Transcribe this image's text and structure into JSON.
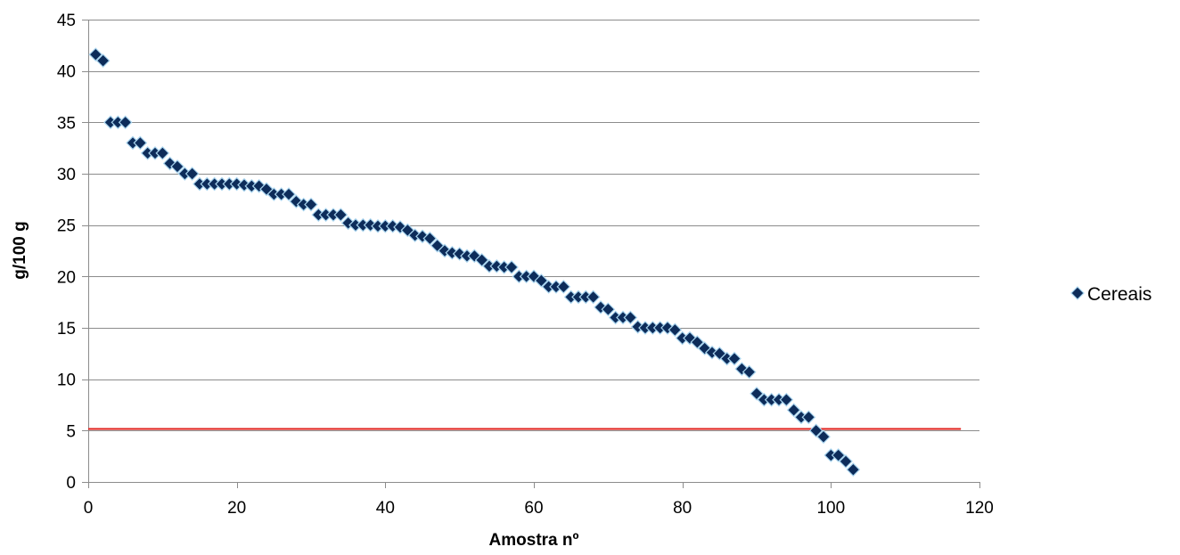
{
  "chart_data": {
    "type": "scatter",
    "xlabel": "Amostra nº",
    "ylabel": "g/100 g",
    "xlim": [
      0,
      120
    ],
    "ylim": [
      0,
      45
    ],
    "xticks": [
      0,
      20,
      40,
      60,
      80,
      100,
      120
    ],
    "yticks": [
      0,
      5,
      10,
      15,
      20,
      25,
      30,
      35,
      40,
      45
    ],
    "grid": "horizontal",
    "legend": "right",
    "reference_line": {
      "y": 5.2,
      "x_from": 0,
      "x_to": 117.5,
      "color": "#e0201b"
    },
    "colors": {
      "marker": "#0d2c5a",
      "marker_edge": "#a9d4ee",
      "grid": "#8c8c8c",
      "axis": "#8c8c8c"
    },
    "series": [
      {
        "name": "Cereais",
        "x": [
          1,
          2,
          3,
          4,
          5,
          6,
          7,
          8,
          9,
          10,
          11,
          12,
          13,
          14,
          15,
          16,
          17,
          18,
          19,
          20,
          21,
          22,
          23,
          24,
          25,
          26,
          27,
          28,
          29,
          30,
          31,
          32,
          33,
          34,
          35,
          36,
          37,
          38,
          39,
          40,
          41,
          42,
          43,
          44,
          45,
          46,
          47,
          48,
          49,
          50,
          51,
          52,
          53,
          54,
          55,
          56,
          57,
          58,
          59,
          60,
          61,
          62,
          63,
          64,
          65,
          66,
          67,
          68,
          69,
          70,
          71,
          72,
          73,
          74,
          75,
          76,
          77,
          78,
          79,
          80,
          81,
          82,
          83,
          84,
          85,
          86,
          87,
          88,
          89,
          90,
          91,
          92,
          93,
          94,
          95,
          96,
          97,
          98,
          99,
          100,
          101,
          102,
          103
        ],
        "y": [
          41.6,
          41.0,
          35.0,
          35.0,
          35.0,
          33.0,
          33.0,
          32.0,
          32.0,
          32.0,
          31.0,
          30.7,
          30.0,
          30.0,
          29.0,
          29.0,
          29.0,
          29.0,
          29.0,
          29.0,
          28.9,
          28.8,
          28.8,
          28.5,
          28.0,
          28.0,
          28.0,
          27.3,
          27.0,
          27.0,
          26.0,
          26.0,
          26.0,
          26.0,
          25.2,
          25.0,
          25.0,
          25.0,
          24.9,
          24.9,
          24.9,
          24.8,
          24.5,
          24.0,
          23.9,
          23.7,
          23.0,
          22.5,
          22.3,
          22.2,
          22.0,
          22.0,
          21.6,
          21.0,
          21.0,
          20.9,
          20.9,
          20.0,
          20.0,
          20.0,
          19.6,
          19.0,
          19.0,
          19.0,
          18.0,
          18.0,
          18.0,
          18.0,
          17.0,
          16.8,
          16.0,
          16.0,
          16.0,
          15.1,
          15.0,
          15.0,
          15.0,
          15.0,
          14.8,
          14.0,
          14.0,
          13.6,
          13.0,
          12.6,
          12.5,
          12.0,
          12.0,
          11.0,
          10.7,
          8.6,
          8.0,
          8.0,
          8.0,
          8.0,
          7.0,
          6.3,
          6.3,
          5.0,
          4.4,
          2.6,
          2.6,
          2.0,
          1.2
        ]
      }
    ]
  }
}
